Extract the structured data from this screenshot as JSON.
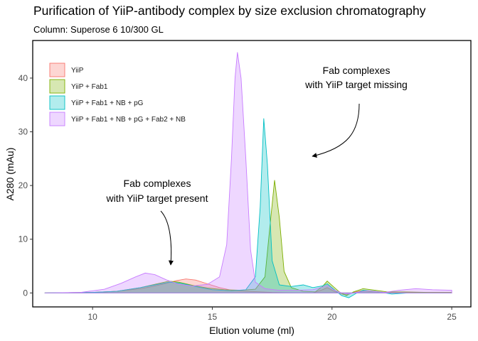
{
  "chart_data": {
    "type": "area",
    "title": "Purification of YiiP-antibody complex by size exclusion chromatography",
    "subtitle": "Column: Superose 6 10/300 GL",
    "xlabel": "Elution volume (ml)",
    "ylabel": "A280 (mAu)",
    "xlim": [
      7.5,
      25.8
    ],
    "ylim": [
      -2.6,
      47
    ],
    "xticks": [
      10,
      15,
      20,
      25
    ],
    "yticks": [
      0,
      10,
      20,
      30,
      40
    ],
    "grid": false,
    "legend_position": "top-left",
    "series": [
      {
        "name": "YiiP",
        "fill": "#F8766D",
        "points": [
          [
            8.0,
            0
          ],
          [
            10.0,
            0.1
          ],
          [
            11.0,
            0.3
          ],
          [
            12.0,
            0.8
          ],
          [
            12.5,
            1.2
          ],
          [
            13.0,
            1.7
          ],
          [
            13.5,
            2.3
          ],
          [
            13.9,
            2.6
          ],
          [
            14.3,
            2.4
          ],
          [
            14.8,
            1.7
          ],
          [
            15.3,
            1.0
          ],
          [
            15.8,
            0.5
          ],
          [
            16.5,
            0.3
          ],
          [
            17.5,
            0.1
          ],
          [
            18.5,
            0
          ],
          [
            19.2,
            0
          ],
          [
            19.6,
            0.6
          ],
          [
            19.8,
            1.0
          ],
          [
            20.1,
            0.3
          ],
          [
            20.4,
            -0.2
          ],
          [
            20.6,
            -0.4
          ],
          [
            20.9,
            0.1
          ],
          [
            21.2,
            0.4
          ],
          [
            21.6,
            0.3
          ],
          [
            22.2,
            0.1
          ],
          [
            23.0,
            0.1
          ],
          [
            24.0,
            0.1
          ],
          [
            25.0,
            0.1
          ]
        ]
      },
      {
        "name": "YiiP + Fab1",
        "fill": "#7CAE00",
        "points": [
          [
            8.0,
            0
          ],
          [
            10.0,
            0.1
          ],
          [
            11.0,
            0.3
          ],
          [
            12.0,
            1.0
          ],
          [
            12.6,
            1.6
          ],
          [
            13.2,
            2.2
          ],
          [
            13.6,
            2.0
          ],
          [
            14.2,
            1.4
          ],
          [
            14.8,
            0.9
          ],
          [
            15.5,
            0.6
          ],
          [
            16.2,
            0.5
          ],
          [
            16.8,
            0.7
          ],
          [
            17.2,
            3.0
          ],
          [
            17.4,
            12.0
          ],
          [
            17.6,
            21.0
          ],
          [
            17.8,
            14.0
          ],
          [
            18.0,
            4.0
          ],
          [
            18.3,
            1.0
          ],
          [
            18.8,
            0.3
          ],
          [
            19.3,
            0.2
          ],
          [
            19.6,
            1.2
          ],
          [
            19.8,
            2.2
          ],
          [
            20.0,
            1.4
          ],
          [
            20.3,
            0.2
          ],
          [
            20.6,
            -0.5
          ],
          [
            20.9,
            0.2
          ],
          [
            21.3,
            0.8
          ],
          [
            21.8,
            0.5
          ],
          [
            22.3,
            0.2
          ],
          [
            23.0,
            0.2
          ],
          [
            24.0,
            0.1
          ],
          [
            25.0,
            0.1
          ]
        ]
      },
      {
        "name": "YiiP + Fab1 + NB + pG",
        "fill": "#00BFC4",
        "points": [
          [
            8.0,
            0
          ],
          [
            10.0,
            0.1
          ],
          [
            11.0,
            0.3
          ],
          [
            12.0,
            1.0
          ],
          [
            12.6,
            1.5
          ],
          [
            13.2,
            2.0
          ],
          [
            13.7,
            1.8
          ],
          [
            14.3,
            1.2
          ],
          [
            15.0,
            0.6
          ],
          [
            15.8,
            0.4
          ],
          [
            16.4,
            0.6
          ],
          [
            16.8,
            3.0
          ],
          [
            17.0,
            16.0
          ],
          [
            17.15,
            32.5
          ],
          [
            17.3,
            24.0
          ],
          [
            17.5,
            6.0
          ],
          [
            17.8,
            1.5
          ],
          [
            18.3,
            1.2
          ],
          [
            18.8,
            1.5
          ],
          [
            19.2,
            1.0
          ],
          [
            19.6,
            1.3
          ],
          [
            19.8,
            1.7
          ],
          [
            20.1,
            0.6
          ],
          [
            20.4,
            -0.5
          ],
          [
            20.7,
            -0.9
          ],
          [
            21.0,
            -0.1
          ],
          [
            21.3,
            0.5
          ],
          [
            21.8,
            0.3
          ],
          [
            22.5,
            -0.2
          ],
          [
            23.2,
            0
          ],
          [
            24.0,
            0
          ],
          [
            25.0,
            0
          ]
        ]
      },
      {
        "name": "YiiP + Fab1 + NB + pG + Fab2 + NB",
        "fill": "#C77CFF",
        "points": [
          [
            8.0,
            0
          ],
          [
            9.5,
            0.1
          ],
          [
            10.5,
            0.7
          ],
          [
            11.2,
            1.8
          ],
          [
            11.8,
            3.0
          ],
          [
            12.2,
            3.7
          ],
          [
            12.6,
            3.4
          ],
          [
            13.1,
            2.4
          ],
          [
            13.6,
            1.6
          ],
          [
            14.2,
            1.3
          ],
          [
            14.8,
            1.6
          ],
          [
            15.3,
            3.0
          ],
          [
            15.6,
            9.0
          ],
          [
            15.8,
            25.0
          ],
          [
            15.95,
            40.0
          ],
          [
            16.05,
            44.8
          ],
          [
            16.2,
            40.0
          ],
          [
            16.4,
            25.0
          ],
          [
            16.6,
            8.0
          ],
          [
            16.8,
            2.0
          ],
          [
            17.2,
            0.8
          ],
          [
            17.8,
            0.5
          ],
          [
            18.5,
            0.5
          ],
          [
            19.2,
            0.6
          ],
          [
            19.6,
            1.1
          ],
          [
            19.8,
            1.4
          ],
          [
            20.1,
            0.5
          ],
          [
            20.4,
            0
          ],
          [
            20.7,
            -0.2
          ],
          [
            21.0,
            0.1
          ],
          [
            21.5,
            0.4
          ],
          [
            22.2,
            0.1
          ],
          [
            22.8,
            0.5
          ],
          [
            23.5,
            0.8
          ],
          [
            24.2,
            0.6
          ],
          [
            25.0,
            0.5
          ]
        ]
      }
    ],
    "annotations": [
      {
        "lines": [
          "Fab complexes",
          "with YiiP target missing"
        ]
      },
      {
        "lines": [
          "Fab complexes",
          "with YiiP target present"
        ]
      }
    ]
  }
}
